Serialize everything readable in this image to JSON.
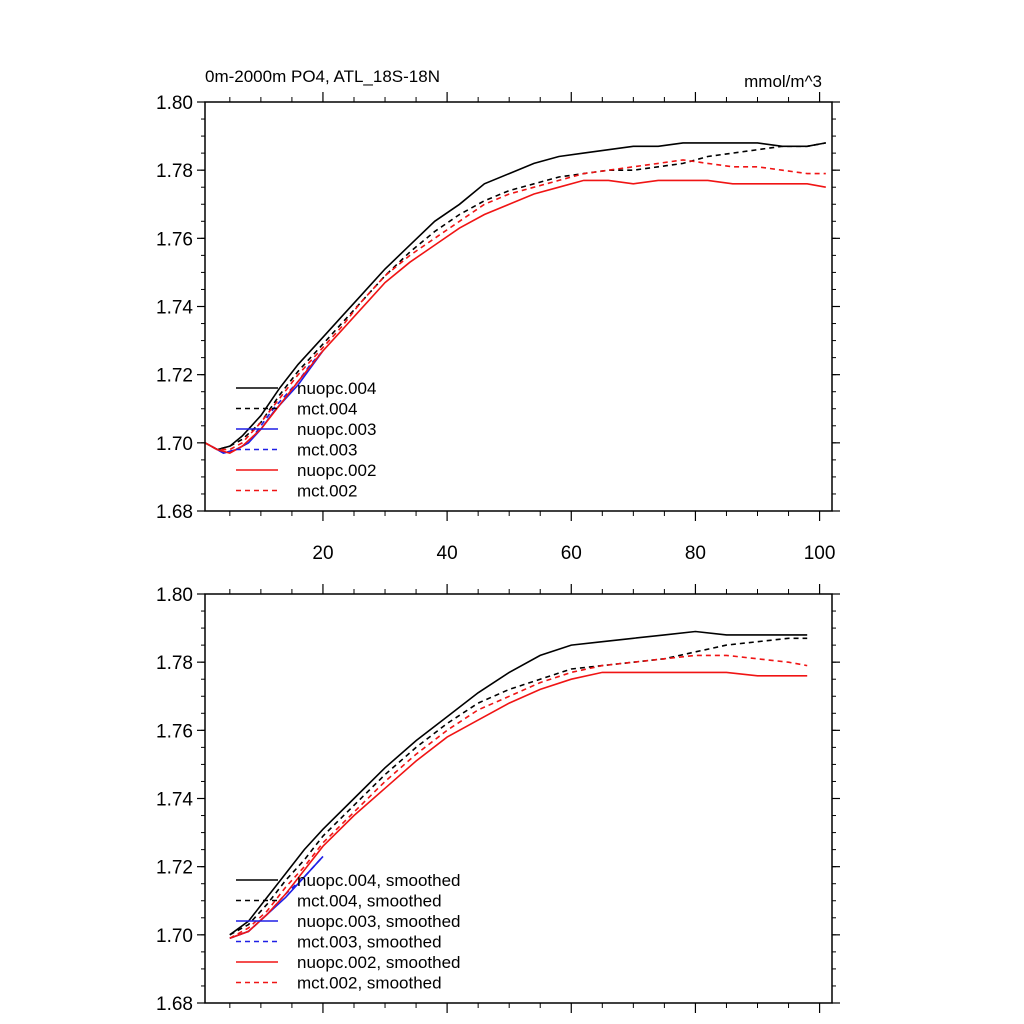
{
  "colors": {
    "black": "#000000",
    "blue": "#1f1fe6",
    "red": "#f01414"
  },
  "chart_data": [
    {
      "type": "line",
      "title": "0m-2000m PO4, ATL_18S-18N",
      "units": "mmol/m^3",
      "xlim": [
        1,
        102
      ],
      "ylim": [
        1.68,
        1.8
      ],
      "x_ticks": [
        20,
        40,
        60,
        80,
        100
      ],
      "x_tick_labels": [
        "20",
        "40",
        "60",
        "80",
        "100"
      ],
      "y_ticks": [
        1.68,
        1.7,
        1.72,
        1.74,
        1.76,
        1.78,
        1.8
      ],
      "y_tick_labels": [
        "1.68",
        "1.70",
        "1.72",
        "1.74",
        "1.76",
        "1.78",
        "1.80"
      ],
      "legend_position": "lower-left",
      "series": [
        {
          "name": "nuopc.004",
          "color": "#000000",
          "dash": "solid",
          "x": [
            1,
            3,
            5,
            7,
            10,
            13,
            16,
            20,
            23,
            26,
            30,
            34,
            38,
            42,
            46,
            50,
            54,
            58,
            62,
            66,
            70,
            74,
            78,
            82,
            86,
            90,
            94,
            98,
            101
          ],
          "y": [
            1.7,
            1.698,
            1.699,
            1.702,
            1.708,
            1.716,
            1.723,
            1.731,
            1.737,
            1.743,
            1.751,
            1.758,
            1.765,
            1.77,
            1.776,
            1.779,
            1.782,
            1.784,
            1.785,
            1.786,
            1.787,
            1.787,
            1.788,
            1.788,
            1.788,
            1.788,
            1.787,
            1.787,
            1.788
          ]
        },
        {
          "name": "mct.004",
          "color": "#000000",
          "dash": "dashed",
          "x": [
            1,
            3,
            5,
            7,
            10,
            13,
            16,
            20,
            23,
            26,
            30,
            34,
            38,
            42,
            46,
            50,
            54,
            58,
            62,
            66,
            70,
            74,
            78,
            82,
            86,
            90,
            94,
            98,
            101
          ],
          "y": [
            1.7,
            1.698,
            1.699,
            1.701,
            1.706,
            1.714,
            1.721,
            1.729,
            1.735,
            1.741,
            1.749,
            1.756,
            1.762,
            1.767,
            1.771,
            1.774,
            1.776,
            1.778,
            1.779,
            1.78,
            1.78,
            1.781,
            1.782,
            1.784,
            1.785,
            1.786,
            1.787,
            1.787,
            1.788
          ]
        },
        {
          "name": "nuopc.003",
          "color": "#1f1fe6",
          "dash": "solid",
          "x": [
            2,
            4,
            6,
            8,
            10,
            12,
            14,
            16,
            18,
            20
          ],
          "y": [
            1.699,
            1.697,
            1.698,
            1.7,
            1.704,
            1.709,
            1.713,
            1.717,
            1.722,
            1.727
          ]
        },
        {
          "name": "mct.003",
          "color": "#1f1fe6",
          "dash": "dashed",
          "x": [
            2,
            4,
            6,
            8,
            10,
            12,
            14,
            16,
            18,
            20
          ],
          "y": [
            1.699,
            1.697,
            1.698,
            1.7,
            1.705,
            1.71,
            1.714,
            1.718,
            1.723,
            1.727
          ]
        },
        {
          "name": "nuopc.002",
          "color": "#f01414",
          "dash": "solid",
          "x": [
            1,
            3,
            5,
            7,
            10,
            13,
            16,
            20,
            23,
            26,
            30,
            34,
            38,
            42,
            46,
            50,
            54,
            58,
            62,
            66,
            70,
            74,
            78,
            82,
            86,
            90,
            94,
            98,
            101
          ],
          "y": [
            1.7,
            1.698,
            1.697,
            1.699,
            1.704,
            1.711,
            1.718,
            1.727,
            1.733,
            1.739,
            1.747,
            1.753,
            1.758,
            1.763,
            1.767,
            1.77,
            1.773,
            1.775,
            1.777,
            1.777,
            1.776,
            1.777,
            1.777,
            1.777,
            1.776,
            1.776,
            1.776,
            1.776,
            1.775
          ]
        },
        {
          "name": "mct.002",
          "color": "#f01414",
          "dash": "dashed",
          "x": [
            1,
            3,
            5,
            7,
            10,
            13,
            16,
            20,
            23,
            26,
            30,
            34,
            38,
            42,
            46,
            50,
            54,
            58,
            62,
            66,
            70,
            74,
            78,
            82,
            86,
            90,
            94,
            98,
            101
          ],
          "y": [
            1.7,
            1.698,
            1.698,
            1.7,
            1.706,
            1.713,
            1.72,
            1.728,
            1.734,
            1.741,
            1.749,
            1.755,
            1.76,
            1.765,
            1.77,
            1.773,
            1.775,
            1.777,
            1.779,
            1.78,
            1.781,
            1.782,
            1.783,
            1.782,
            1.781,
            1.781,
            1.78,
            1.779,
            1.779
          ]
        }
      ]
    },
    {
      "type": "line",
      "xlim": [
        1,
        102
      ],
      "ylim": [
        1.68,
        1.8
      ],
      "x_ticks": [
        20,
        40,
        60,
        80,
        100
      ],
      "y_ticks": [
        1.68,
        1.7,
        1.72,
        1.74,
        1.76,
        1.78,
        1.8
      ],
      "y_tick_labels": [
        "1.68",
        "1.70",
        "1.72",
        "1.74",
        "1.76",
        "1.78",
        "1.80"
      ],
      "legend_position": "lower-left",
      "series": [
        {
          "name": "nuopc.004, smoothed",
          "color": "#000000",
          "dash": "solid",
          "x": [
            5,
            8,
            11,
            14,
            17,
            20,
            25,
            30,
            35,
            40,
            45,
            50,
            55,
            60,
            65,
            70,
            75,
            80,
            85,
            90,
            95,
            98
          ],
          "y": [
            1.7,
            1.704,
            1.711,
            1.718,
            1.725,
            1.731,
            1.74,
            1.749,
            1.757,
            1.764,
            1.771,
            1.777,
            1.782,
            1.785,
            1.786,
            1.787,
            1.788,
            1.789,
            1.788,
            1.788,
            1.788,
            1.788
          ]
        },
        {
          "name": "mct.004, smoothed",
          "color": "#000000",
          "dash": "dashed",
          "x": [
            5,
            8,
            11,
            14,
            17,
            20,
            25,
            30,
            35,
            40,
            45,
            50,
            55,
            60,
            65,
            70,
            75,
            80,
            85,
            90,
            95,
            98
          ],
          "y": [
            1.7,
            1.703,
            1.709,
            1.716,
            1.722,
            1.729,
            1.738,
            1.747,
            1.755,
            1.762,
            1.768,
            1.772,
            1.775,
            1.778,
            1.779,
            1.78,
            1.781,
            1.783,
            1.785,
            1.786,
            1.787,
            1.787
          ]
        },
        {
          "name": "nuopc.003, smoothed",
          "color": "#1f1fe6",
          "dash": "solid",
          "x": [
            5,
            8,
            11,
            14,
            17,
            20
          ],
          "y": [
            1.699,
            1.701,
            1.706,
            1.711,
            1.717,
            1.723
          ]
        },
        {
          "name": "mct.003, smoothed",
          "color": "#1f1fe6",
          "dash": "dashed",
          "x": [
            5,
            8,
            11,
            14,
            17,
            20
          ],
          "y": [
            1.699,
            1.701,
            1.706,
            1.712,
            1.717,
            1.723
          ]
        },
        {
          "name": "nuopc.002, smoothed",
          "color": "#f01414",
          "dash": "solid",
          "x": [
            5,
            8,
            11,
            14,
            17,
            20,
            25,
            30,
            35,
            40,
            45,
            50,
            55,
            60,
            65,
            70,
            75,
            80,
            85,
            90,
            95,
            98
          ],
          "y": [
            1.699,
            1.701,
            1.706,
            1.712,
            1.719,
            1.726,
            1.735,
            1.743,
            1.751,
            1.758,
            1.763,
            1.768,
            1.772,
            1.775,
            1.777,
            1.777,
            1.777,
            1.777,
            1.777,
            1.776,
            1.776,
            1.776
          ]
        },
        {
          "name": "mct.002, smoothed",
          "color": "#f01414",
          "dash": "dashed",
          "x": [
            5,
            8,
            11,
            14,
            17,
            20,
            25,
            30,
            35,
            40,
            45,
            50,
            55,
            60,
            65,
            70,
            75,
            80,
            85,
            90,
            95,
            98
          ],
          "y": [
            1.699,
            1.702,
            1.707,
            1.714,
            1.72,
            1.727,
            1.736,
            1.745,
            1.753,
            1.76,
            1.766,
            1.77,
            1.774,
            1.777,
            1.779,
            1.78,
            1.781,
            1.782,
            1.782,
            1.781,
            1.78,
            1.779
          ]
        }
      ]
    }
  ]
}
